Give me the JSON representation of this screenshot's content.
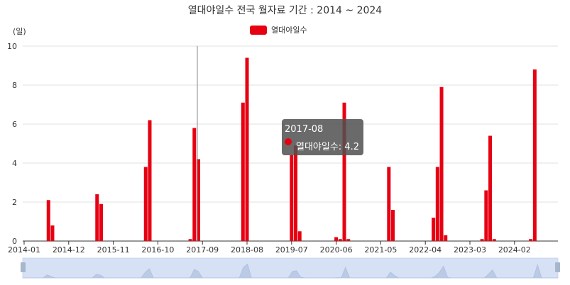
{
  "chart_data": {
    "type": "bar",
    "title": "열대야일수 전국 월자료 기간 : 2014 ~ 2024",
    "ylabel": "(일)",
    "ylim": [
      0,
      10
    ],
    "yticks": [
      0,
      2,
      4,
      6,
      8,
      10
    ],
    "xticks": [
      "2014-01",
      "2014-12",
      "2015-11",
      "2016-10",
      "2017-09",
      "2018-08",
      "2019-07",
      "2020-06",
      "2021-05",
      "2022-04",
      "2023-03",
      "2024-02"
    ],
    "legend": {
      "label": "열대야일수",
      "color": "#e60012",
      "position": "top-center"
    },
    "grid": true,
    "series": [
      {
        "name": "열대야일수",
        "color": "#e60012",
        "points": [
          {
            "x": "2014-07",
            "y": 2.1
          },
          {
            "x": "2014-08",
            "y": 0.8
          },
          {
            "x": "2015-07",
            "y": 2.4
          },
          {
            "x": "2015-08",
            "y": 1.9
          },
          {
            "x": "2016-07",
            "y": 3.8
          },
          {
            "x": "2016-08",
            "y": 6.2
          },
          {
            "x": "2017-06",
            "y": 0.1
          },
          {
            "x": "2017-07",
            "y": 5.8
          },
          {
            "x": "2017-08",
            "y": 4.2
          },
          {
            "x": "2018-07",
            "y": 7.1
          },
          {
            "x": "2018-08",
            "y": 9.4
          },
          {
            "x": "2019-07",
            "y": 4.4
          },
          {
            "x": "2019-08",
            "y": 4.9
          },
          {
            "x": "2019-09",
            "y": 0.5
          },
          {
            "x": "2020-06",
            "y": 0.2
          },
          {
            "x": "2020-07",
            "y": 0.1
          },
          {
            "x": "2020-08",
            "y": 7.1
          },
          {
            "x": "2020-09",
            "y": 0.1
          },
          {
            "x": "2021-07",
            "y": 3.8
          },
          {
            "x": "2021-08",
            "y": 1.6
          },
          {
            "x": "2022-06",
            "y": 1.2
          },
          {
            "x": "2022-07",
            "y": 3.8
          },
          {
            "x": "2022-08",
            "y": 7.9
          },
          {
            "x": "2022-09",
            "y": 0.3
          },
          {
            "x": "2023-06",
            "y": 0.1
          },
          {
            "x": "2023-07",
            "y": 2.6
          },
          {
            "x": "2023-08",
            "y": 5.4
          },
          {
            "x": "2023-09",
            "y": 0.1
          },
          {
            "x": "2024-06",
            "y": 0.1
          },
          {
            "x": "2024-07",
            "y": 8.8
          }
        ]
      }
    ],
    "tooltip": {
      "date": "2017-08",
      "label": "열대야일수: 4.2"
    }
  }
}
